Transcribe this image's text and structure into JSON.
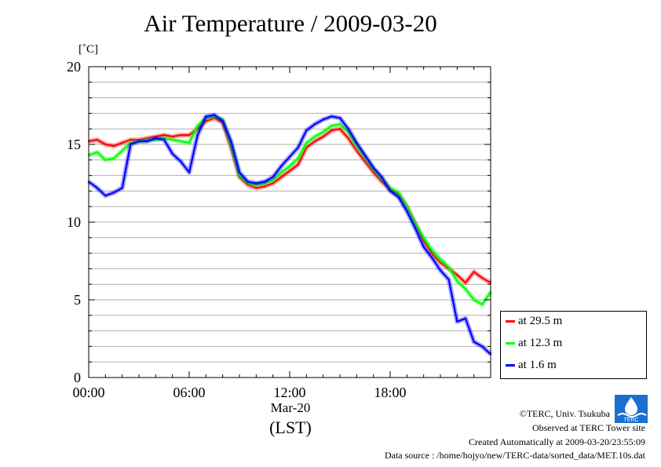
{
  "chart_data": {
    "type": "line",
    "title": "Air Temperature / 2009-03-20",
    "ylabel_unit": "[˚C]",
    "ylim": [
      0,
      20
    ],
    "yticks": [
      "0",
      "5",
      "10",
      "15",
      "20"
    ],
    "xlim_hours": [
      0,
      24
    ],
    "xticks": [
      "00:00",
      "06:00",
      "12:00",
      "18:00"
    ],
    "xlabel_date": "Mar-20",
    "xlabel_zone": "(LST)",
    "grid": true,
    "legend_position": "bottom-right",
    "series": [
      {
        "name": "at 29.5 m",
        "color": "#ff0000",
        "x": [
          0,
          0.5,
          1,
          1.5,
          2,
          2.5,
          3,
          3.5,
          4,
          4.5,
          5,
          5.5,
          6,
          6.5,
          7,
          7.5,
          8,
          8.5,
          9,
          9.5,
          10,
          10.5,
          11,
          11.5,
          12,
          12.5,
          13,
          13.5,
          14,
          14.5,
          15,
          15.5,
          16,
          16.5,
          17,
          17.5,
          18,
          18.5,
          19,
          19.5,
          20,
          20.5,
          21,
          21.5,
          22,
          22.5,
          23,
          23.5,
          24
        ],
        "y": [
          15.2,
          15.3,
          15.0,
          14.9,
          15.1,
          15.3,
          15.3,
          15.4,
          15.5,
          15.6,
          15.5,
          15.6,
          15.6,
          16.0,
          16.5,
          16.7,
          16.4,
          14.8,
          12.9,
          12.4,
          12.2,
          12.3,
          12.5,
          12.9,
          13.3,
          13.7,
          14.8,
          15.2,
          15.5,
          15.9,
          16.0,
          15.4,
          14.6,
          13.9,
          13.2,
          12.6,
          12.1,
          11.8,
          11.0,
          9.9,
          8.8,
          8.0,
          7.4,
          7.0,
          6.6,
          6.1,
          6.8,
          6.4,
          6.1
        ]
      },
      {
        "name": "at 12.3 m",
        "color": "#00ff00",
        "x": [
          0,
          0.5,
          1,
          1.5,
          2,
          2.5,
          3,
          3.5,
          4,
          4.5,
          5,
          5.5,
          6,
          6.5,
          7,
          7.5,
          8,
          8.5,
          9,
          9.5,
          10,
          10.5,
          11,
          11.5,
          12,
          12.5,
          13,
          13.5,
          14,
          14.5,
          15,
          15.5,
          16,
          16.5,
          17,
          17.5,
          18,
          18.5,
          19,
          19.5,
          20,
          20.5,
          21,
          21.5,
          22,
          22.5,
          23,
          23.5,
          24
        ],
        "y": [
          14.3,
          14.5,
          14.0,
          14.1,
          14.6,
          15.1,
          15.2,
          15.3,
          15.3,
          15.4,
          15.3,
          15.2,
          15.1,
          16.2,
          16.7,
          16.8,
          16.6,
          15.0,
          13.0,
          12.5,
          12.4,
          12.5,
          12.7,
          13.2,
          13.6,
          14.1,
          15.1,
          15.5,
          15.8,
          16.2,
          16.3,
          15.8,
          14.9,
          14.2,
          13.4,
          12.8,
          12.2,
          11.9,
          11.0,
          9.9,
          9.0,
          8.2,
          7.6,
          7.1,
          6.2,
          5.7,
          5.0,
          4.7,
          5.5
        ]
      },
      {
        "name": "at 1.6 m",
        "color": "#0000ff",
        "x": [
          0,
          0.5,
          1,
          1.5,
          2,
          2.5,
          3,
          3.5,
          4,
          4.5,
          5,
          5.5,
          6,
          6.5,
          7,
          7.5,
          8,
          8.5,
          9,
          9.5,
          10,
          10.5,
          11,
          11.5,
          12,
          12.5,
          13,
          13.5,
          14,
          14.5,
          15,
          15.5,
          16,
          16.5,
          17,
          17.5,
          18,
          18.5,
          19,
          19.5,
          20,
          20.5,
          21,
          21.5,
          22,
          22.5,
          23,
          23.5,
          24
        ],
        "y": [
          12.6,
          12.2,
          11.7,
          11.9,
          12.2,
          15.0,
          15.2,
          15.2,
          15.4,
          15.3,
          14.4,
          13.9,
          13.2,
          15.6,
          16.8,
          16.9,
          16.5,
          15.2,
          13.2,
          12.6,
          12.5,
          12.6,
          12.9,
          13.6,
          14.2,
          14.8,
          15.9,
          16.3,
          16.6,
          16.8,
          16.7,
          16.0,
          15.1,
          14.3,
          13.5,
          12.9,
          12.0,
          11.6,
          10.7,
          9.6,
          8.4,
          7.7,
          6.9,
          6.3,
          3.6,
          3.8,
          2.3,
          2.0,
          1.5
        ]
      }
    ]
  },
  "footer": {
    "copyright": "©TERC, Univ. Tsukuba",
    "observed": "Observed at TERC Tower site",
    "created": "Created Automatically at 2009-03-20/23:55:09",
    "source": "Data source : /home/hojyo/new/TERC-data/sorted_data/MET.10s.dat"
  },
  "logo_text": "TERC"
}
